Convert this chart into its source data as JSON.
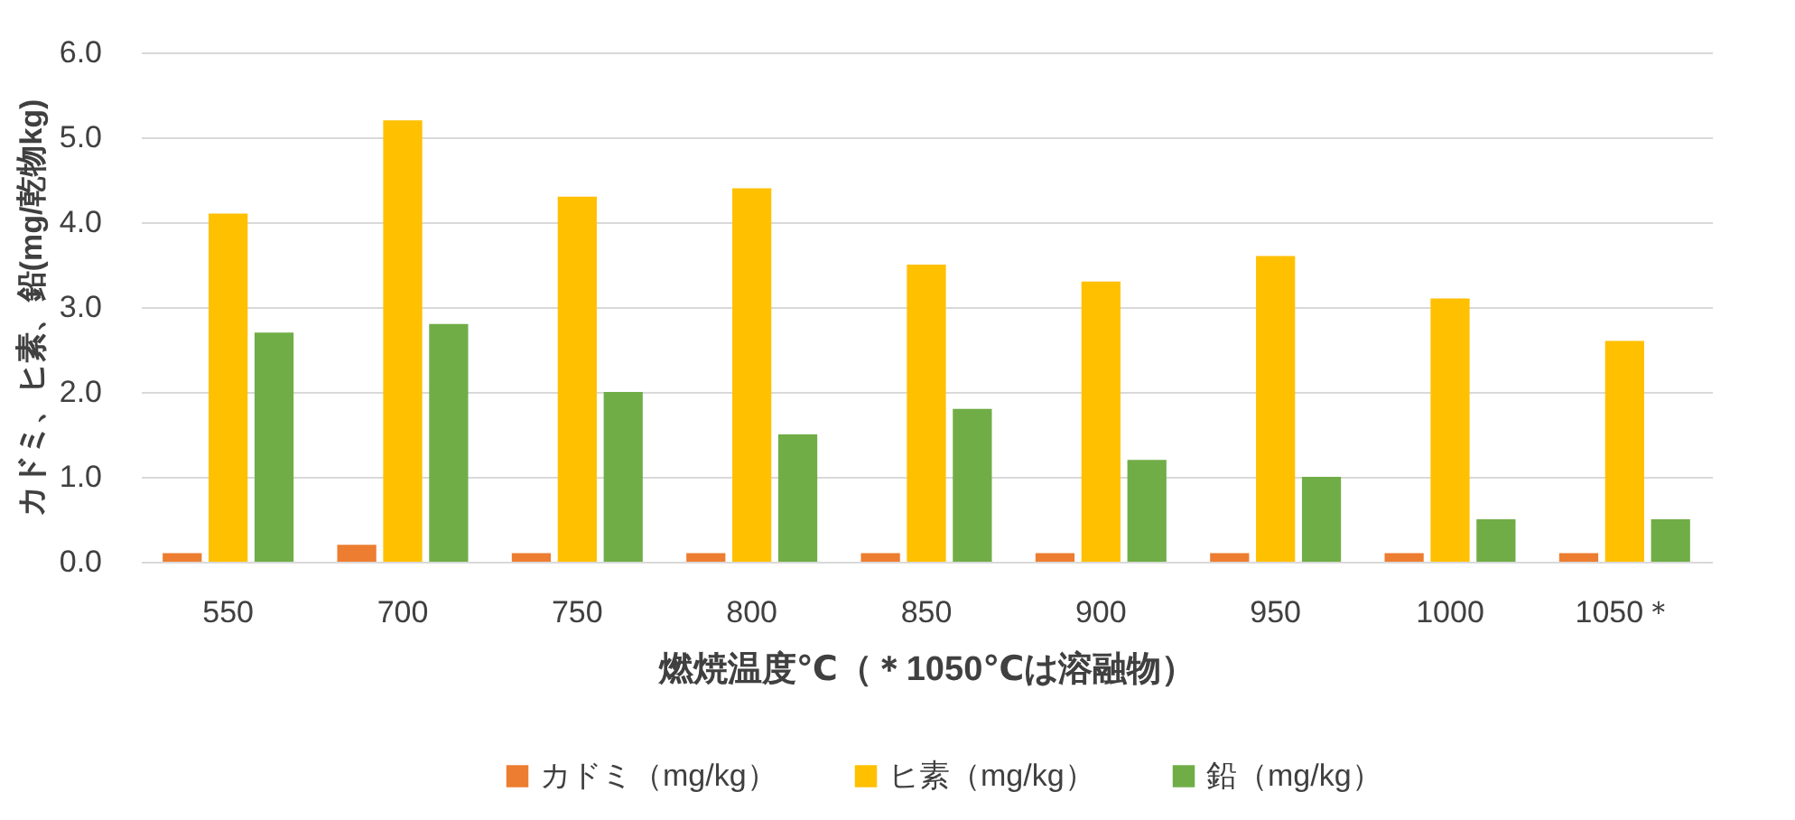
{
  "chart_data": {
    "type": "bar",
    "xlabel": "燃焼温度℃（＊1050℃は溶融物）",
    "ylabel": "カドミ、ヒ素、鉛(mg/乾物kg)",
    "categories": [
      "550",
      "700",
      "750",
      "800",
      "850",
      "900",
      "950",
      "1000",
      "1050＊"
    ],
    "series": [
      {
        "name": "カドミ（mg/kg）",
        "color": "#ed7d31",
        "values": [
          0.1,
          0.2,
          0.1,
          0.1,
          0.1,
          0.1,
          0.1,
          0.1,
          0.1
        ]
      },
      {
        "name": "ヒ素（mg/kg）",
        "color": "#ffc000",
        "values": [
          4.1,
          5.2,
          4.3,
          4.4,
          3.5,
          3.3,
          3.6,
          3.1,
          2.6
        ]
      },
      {
        "name": "鉛（mg/kg）",
        "color": "#70ad47",
        "values": [
          2.7,
          2.8,
          2.0,
          1.5,
          1.8,
          1.2,
          1.0,
          0.5,
          0.5
        ]
      }
    ],
    "ylim": [
      0,
      6
    ],
    "yticks": [
      {
        "value": 0,
        "label": "0.0"
      },
      {
        "value": 1,
        "label": "1.0"
      },
      {
        "value": 2,
        "label": "2.0"
      },
      {
        "value": 3,
        "label": "3.0"
      },
      {
        "value": 4,
        "label": "4.0"
      },
      {
        "value": 5,
        "label": "5.0"
      },
      {
        "value": 6,
        "label": "6.0"
      }
    ],
    "grid": "y",
    "legend": "bottom"
  }
}
